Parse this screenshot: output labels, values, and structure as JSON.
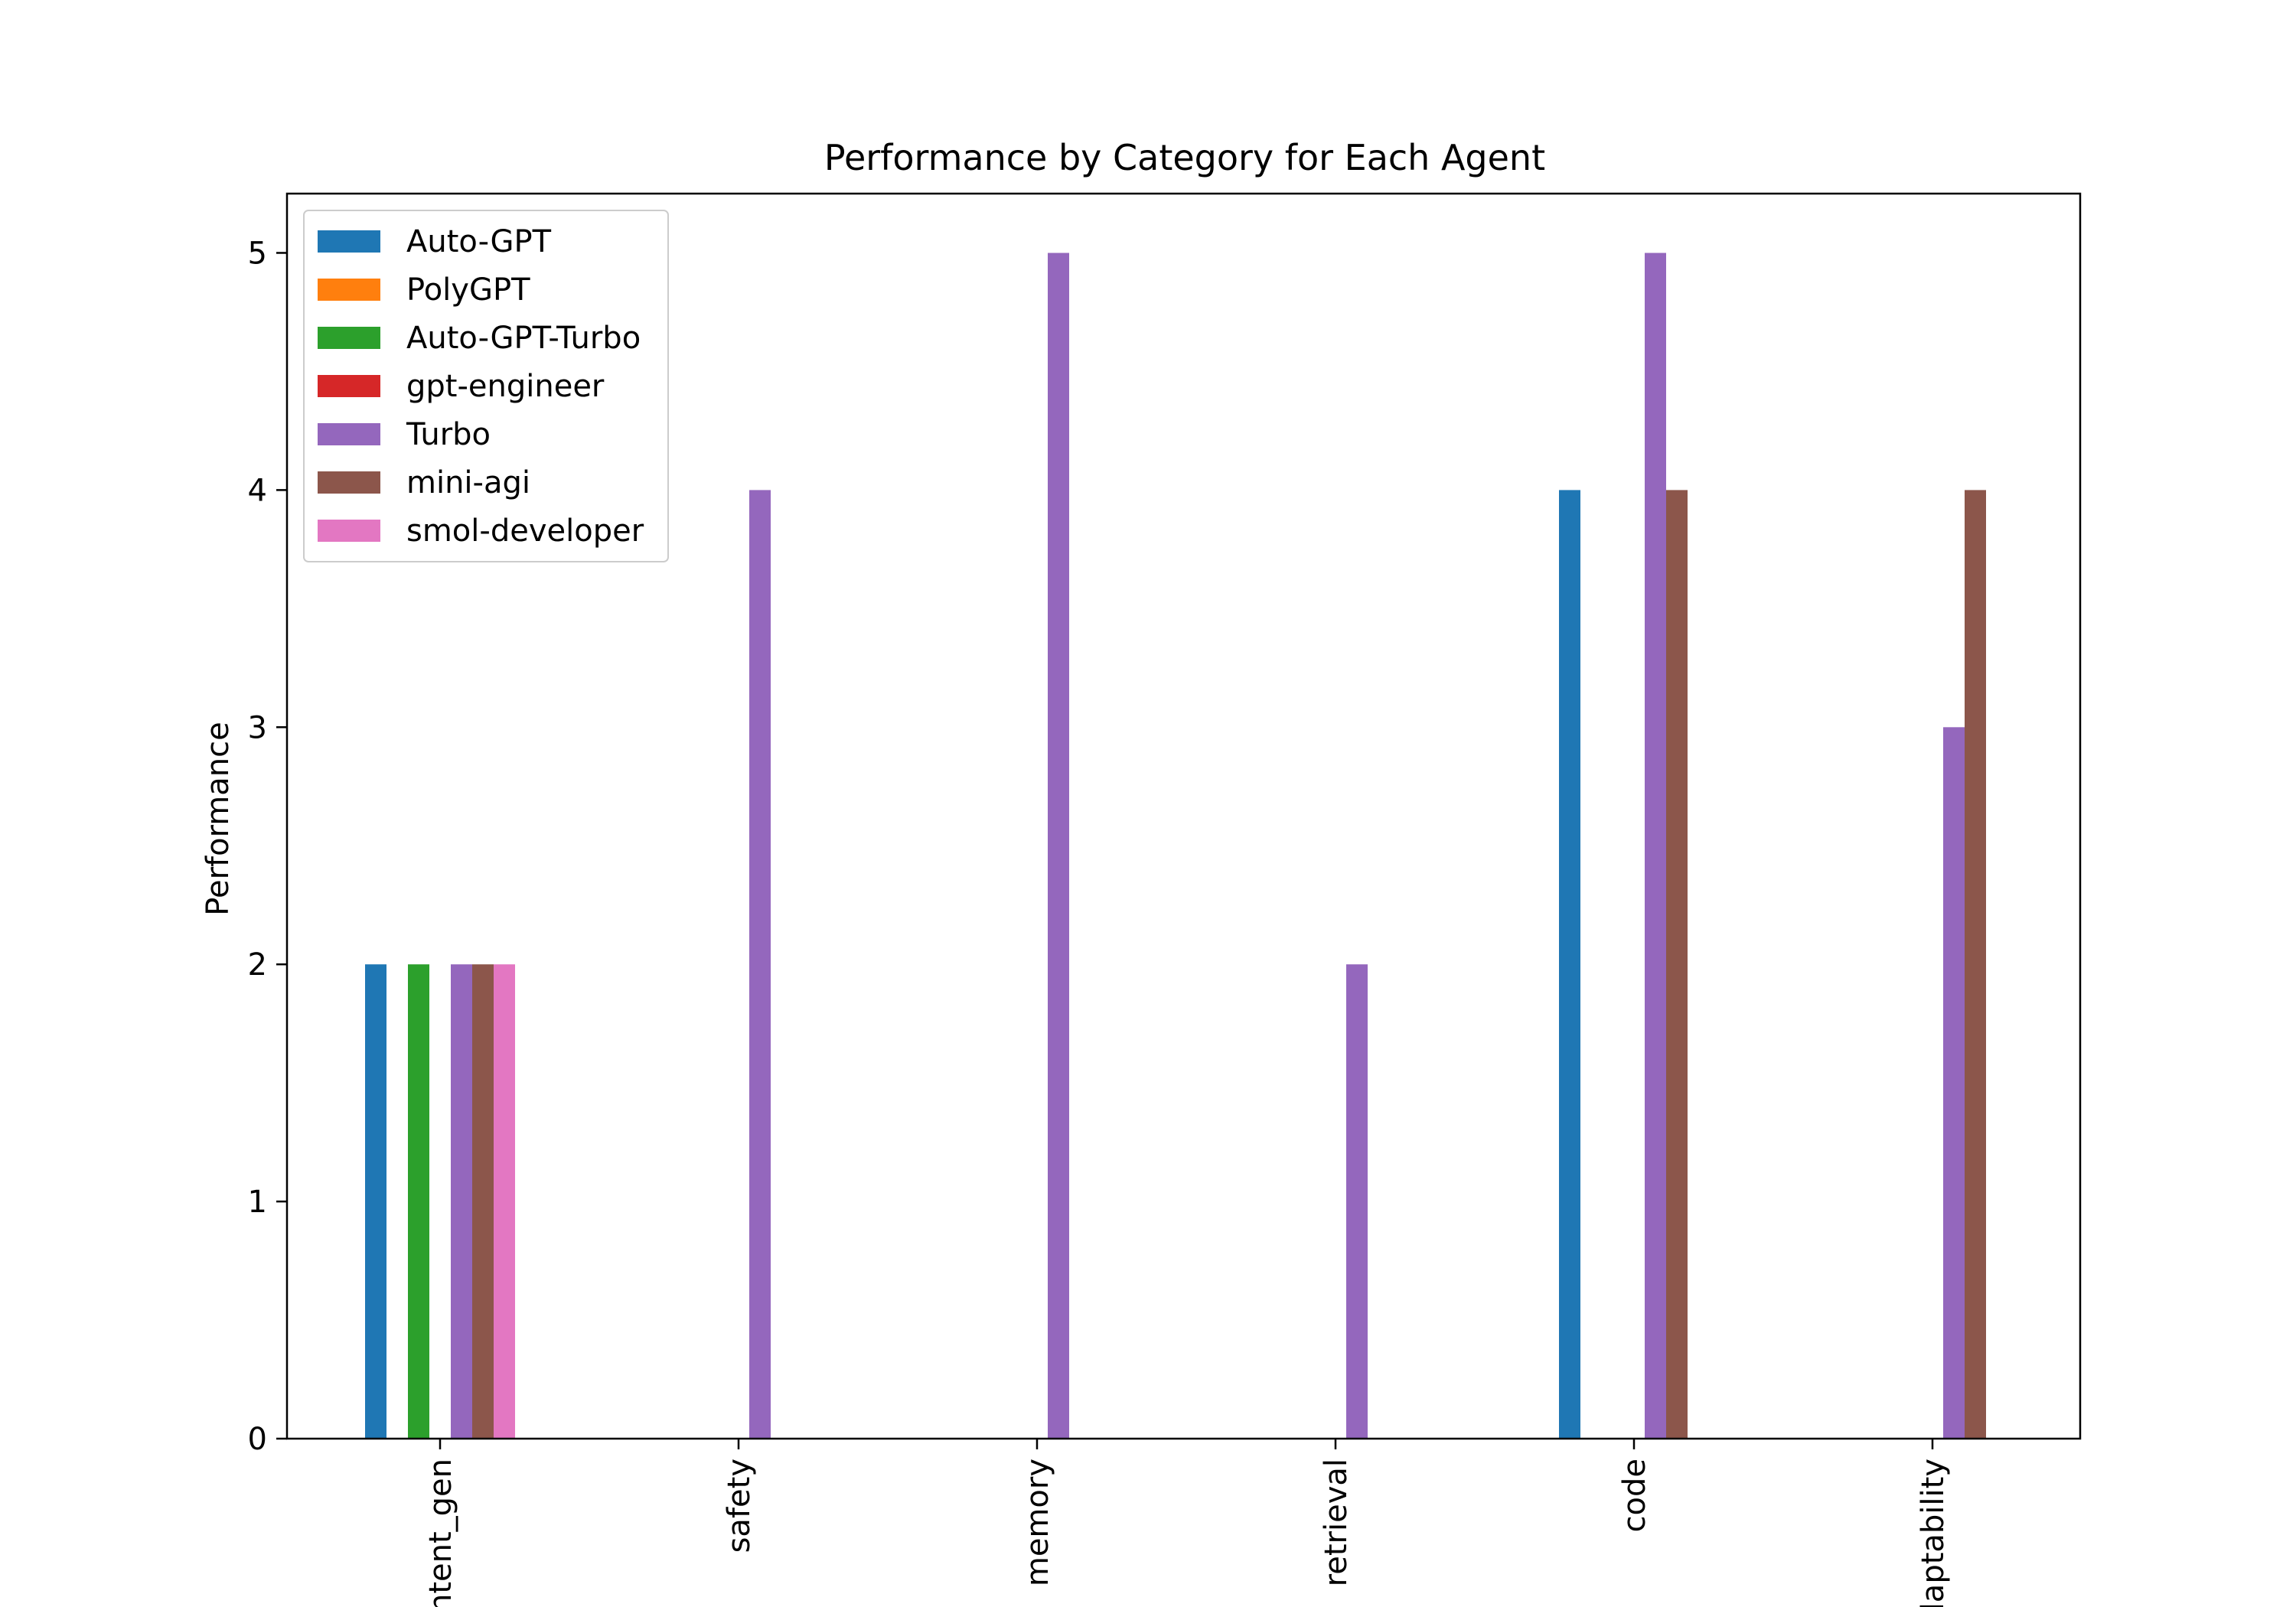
{
  "chart_data": {
    "type": "bar",
    "title": "Performance by Category for Each Agent",
    "xlabel": "",
    "ylabel": "Performance",
    "ylim": [
      0,
      5.25
    ],
    "yticks": [
      0,
      1,
      2,
      3,
      4,
      5
    ],
    "grid": false,
    "legend_position": "top-left",
    "categories": [
      "content_gen",
      "safety",
      "memory",
      "retrieval",
      "code",
      "adaptability"
    ],
    "series": [
      {
        "name": "Auto-GPT",
        "color": "#1f77b4",
        "values": [
          2,
          0,
          0,
          0,
          4,
          0
        ]
      },
      {
        "name": "PolyGPT",
        "color": "#ff7f0e",
        "values": [
          0,
          0,
          0,
          0,
          0,
          0
        ]
      },
      {
        "name": "Auto-GPT-Turbo",
        "color": "#2ca02c",
        "values": [
          2,
          0,
          0,
          0,
          0,
          0
        ]
      },
      {
        "name": "gpt-engineer",
        "color": "#d62728",
        "values": [
          0,
          0,
          0,
          0,
          0,
          0
        ]
      },
      {
        "name": "Turbo",
        "color": "#9467bd",
        "values": [
          2,
          4,
          5,
          2,
          5,
          3
        ]
      },
      {
        "name": "mini-agi",
        "color": "#8c564b",
        "values": [
          2,
          0,
          0,
          0,
          4,
          4
        ]
      },
      {
        "name": "smol-developer",
        "color": "#e377c2",
        "values": [
          2,
          0,
          0,
          0,
          0,
          0
        ]
      }
    ]
  }
}
